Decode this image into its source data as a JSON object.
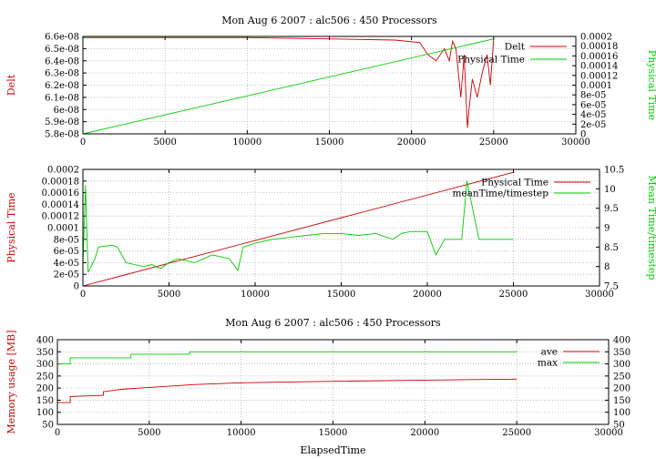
{
  "chart_data": [
    {
      "type": "line",
      "title": "Mon Aug 6 2007 : alc506 : 450 Processors",
      "xlabel": "",
      "ylabel": "Delt",
      "y2label": "Physical Time",
      "xlim": [
        0,
        30000
      ],
      "ylim": [
        5.8e-08,
        6.6e-08
      ],
      "y2lim": [
        0,
        0.0002
      ],
      "xticks": [
        "0",
        "5000",
        "10000",
        "15000",
        "20000",
        "25000",
        "30000"
      ],
      "yticks": [
        "5.8e-08",
        "5.9e-08",
        "6e-08",
        "6.1e-08",
        "6.2e-08",
        "6.3e-08",
        "6.4e-08",
        "6.5e-08",
        "6.6e-08"
      ],
      "y2ticks": [
        "0",
        "2e-05",
        "4e-05",
        "6e-05",
        "8e-05",
        "0.0001",
        "0.00012",
        "0.00014",
        "0.00016",
        "0.00018",
        "0.0002"
      ],
      "grid": true,
      "legend_position": "top-right",
      "colors": {
        "Delt": "#cc0000",
        "Physical Time": "#00cc00",
        "ylabel": "#cc0000",
        "y2label": "#00cc00"
      },
      "series": [
        {
          "name": "Delt",
          "axis": "y",
          "x": [
            0,
            5000,
            10000,
            15000,
            19000,
            20500,
            21000,
            21500,
            22000,
            22300,
            22500,
            22700,
            23000,
            23200,
            23400,
            23500,
            23700,
            24000,
            24300,
            24600,
            24800,
            25000
          ],
          "y": [
            6.59e-08,
            6.59e-08,
            6.59e-08,
            6.58e-08,
            6.57e-08,
            6.55e-08,
            6.45e-08,
            6.4e-08,
            6.5e-08,
            6.4e-08,
            6.56e-08,
            6.5e-08,
            6.1e-08,
            6.45e-08,
            5.85e-08,
            6e-08,
            6.25e-08,
            6.1e-08,
            6.3e-08,
            6.45e-08,
            6.2e-08,
            6.58e-08
          ]
        },
        {
          "name": "Physical Time",
          "axis": "y2",
          "x": [
            0,
            25000
          ],
          "y": [
            0,
            0.000195
          ]
        }
      ]
    },
    {
      "type": "line",
      "title": "",
      "xlabel": "",
      "ylabel": "Physical Time",
      "y2label": "Mean Time/timestep",
      "xlim": [
        0,
        30000
      ],
      "ylim": [
        0,
        0.0002
      ],
      "y2lim": [
        7.5,
        10.5
      ],
      "xticks": [
        "0",
        "5000",
        "10000",
        "15000",
        "20000",
        "25000",
        "30000"
      ],
      "yticks": [
        "0",
        "2e-05",
        "4e-05",
        "6e-05",
        "8e-05",
        "0.0001",
        "0.00012",
        "0.00014",
        "0.00016",
        "0.00018",
        "0.0002"
      ],
      "y2ticks": [
        "7.5",
        "8",
        "8.5",
        "9",
        "9.5",
        "10",
        "10.5"
      ],
      "grid": true,
      "legend_position": "top-right",
      "colors": {
        "Physical Time": "#cc0000",
        "meanTime/timestep": "#00cc00",
        "ylabel": "#cc0000",
        "y2label": "#00cc00"
      },
      "series": [
        {
          "name": "Physical Time",
          "axis": "y",
          "x": [
            0,
            25000
          ],
          "y": [
            0,
            0.000195
          ]
        },
        {
          "name": "meanTime/timestep",
          "axis": "y2",
          "x": [
            0,
            150,
            300,
            700,
            900,
            1700,
            2000,
            2500,
            3500,
            4000,
            4500,
            5000,
            5500,
            6500,
            7500,
            8500,
            9000,
            9300,
            10000,
            11000,
            12000,
            13000,
            14000,
            15000,
            16000,
            17000,
            18000,
            18500,
            19000,
            20000,
            20500,
            21000,
            22000,
            22300,
            23000,
            24000,
            25000
          ],
          "y": [
            8.0,
            10.1,
            7.85,
            8.2,
            8.5,
            8.55,
            8.5,
            8.1,
            8.0,
            8.05,
            7.95,
            8.1,
            8.2,
            8.1,
            8.3,
            8.2,
            7.9,
            8.5,
            8.6,
            8.7,
            8.75,
            8.8,
            8.85,
            8.85,
            8.8,
            8.85,
            8.7,
            8.85,
            8.9,
            8.9,
            8.3,
            8.7,
            8.7,
            10.2,
            8.7,
            8.7,
            8.7
          ]
        }
      ]
    },
    {
      "type": "line",
      "title": "Mon Aug 6 2007 : alc506 : 450 Processors",
      "xlabel": "ElapsedTime",
      "ylabel": "Memory usage [MB]",
      "y2label": "",
      "xlim": [
        0,
        30000
      ],
      "ylim": [
        50,
        400
      ],
      "y2lim": [
        50,
        400
      ],
      "xticks": [
        "0",
        "5000",
        "10000",
        "15000",
        "20000",
        "25000",
        "30000"
      ],
      "yticks": [
        "50",
        "100",
        "150",
        "200",
        "250",
        "300",
        "350",
        "400"
      ],
      "y2ticks": [
        "50",
        "100",
        "150",
        "200",
        "250",
        "300",
        "350",
        "400"
      ],
      "grid": true,
      "legend_position": "top-right",
      "colors": {
        "ave": "#cc0000",
        "max": "#00cc00",
        "ylabel": "#cc0000"
      },
      "series": [
        {
          "name": "ave",
          "axis": "y",
          "x": [
            0,
            700,
            700,
            2500,
            2500,
            3500,
            4500,
            5500,
            7500,
            10000,
            15000,
            20000,
            25000
          ],
          "y": [
            140,
            140,
            165,
            170,
            185,
            195,
            200,
            205,
            215,
            222,
            228,
            233,
            237
          ]
        },
        {
          "name": "max",
          "axis": "y",
          "x": [
            0,
            700,
            700,
            4000,
            4000,
            7200,
            7200,
            25000
          ],
          "y": [
            300,
            300,
            325,
            325,
            340,
            340,
            350,
            350
          ]
        }
      ]
    }
  ]
}
